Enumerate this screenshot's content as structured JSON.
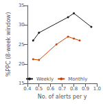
{
  "chart_data": {
    "type": "line",
    "xlabel": "No. of alerts per y",
    "ylabel": "%PPC (8-week window)",
    "xlim": [
      0.4,
      1.0
    ],
    "ylim": [
      15,
      35
    ],
    "xticks": [
      0.4,
      0.5,
      0.6,
      0.7,
      0.8,
      0.9,
      {
        "value": 1.0,
        "label": "1.0"
      }
    ],
    "yticks": [
      15,
      20,
      25,
      30,
      35
    ],
    "grid": false,
    "legend": "lower left",
    "marker": "o",
    "line_style": "solid",
    "series": [
      {
        "name": "Weekly",
        "color": "#1a1a1a",
        "x": [
          0.45,
          0.5,
          0.75,
          0.8,
          0.95
        ],
        "values": [
          26.0,
          28.0,
          32.0,
          33.0,
          29.5
        ]
      },
      {
        "name": "Monthly",
        "color": "#cc4400",
        "x": [
          0.45,
          0.5,
          0.65,
          0.75,
          0.8,
          0.85
        ],
        "values": [
          21.2,
          21.0,
          25.0,
          27.0,
          26.5,
          26.0
        ]
      }
    ]
  }
}
